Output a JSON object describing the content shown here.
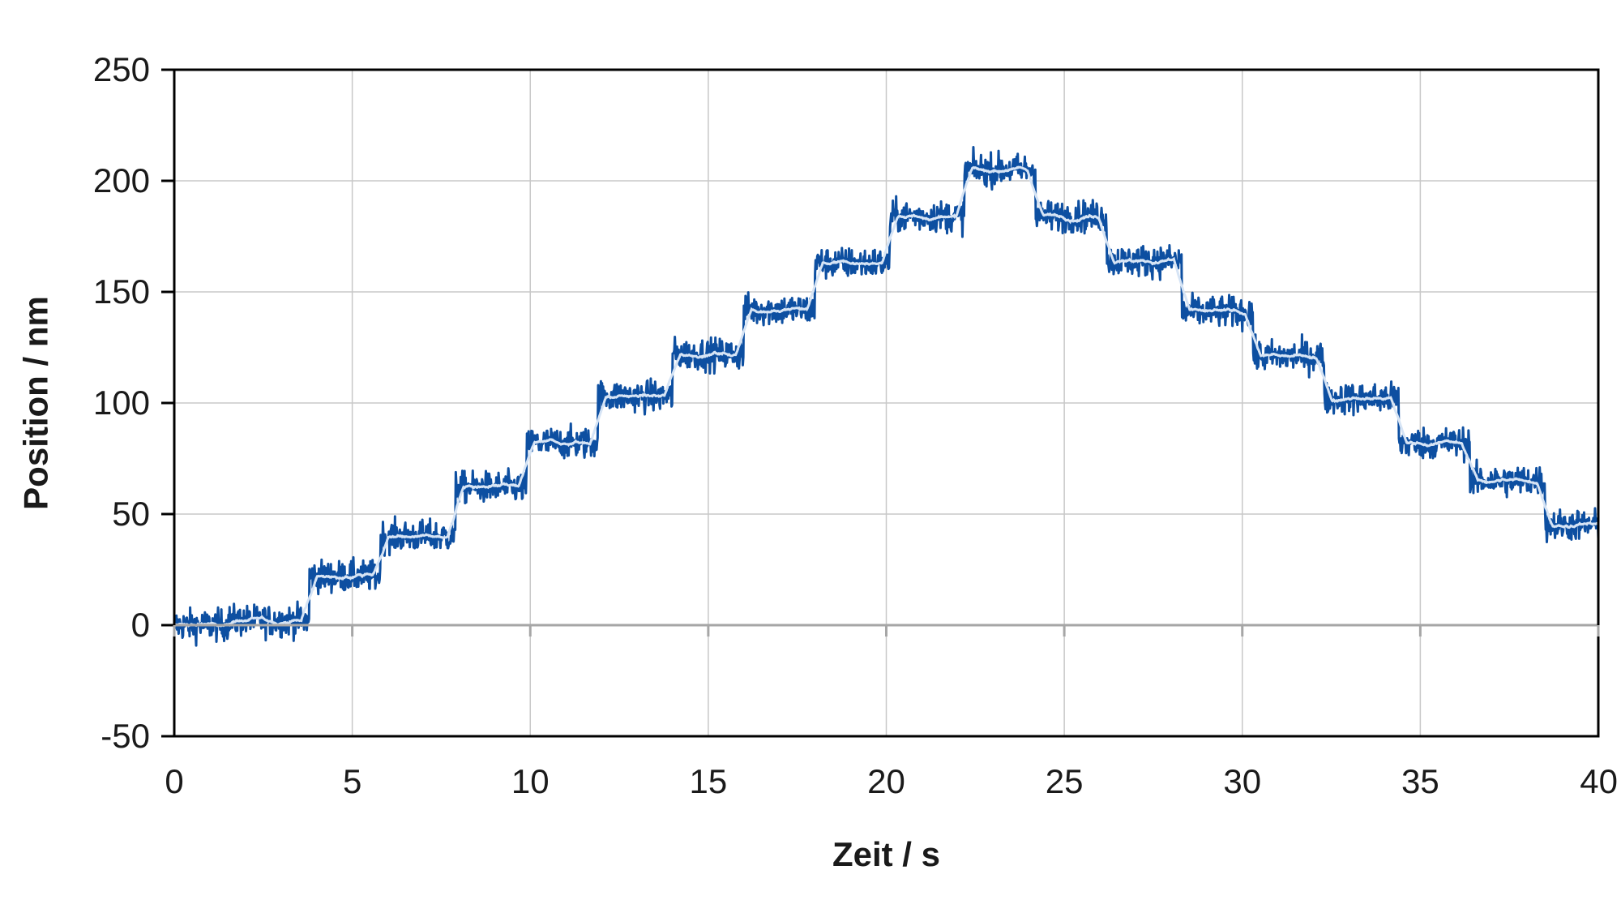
{
  "chart_data": {
    "type": "line",
    "title": "",
    "xlabel": "Zeit / s",
    "ylabel": "Position / nm",
    "xlim": [
      0,
      40
    ],
    "ylim": [
      -50,
      250
    ],
    "xticks": [
      0,
      5,
      10,
      15,
      20,
      25,
      30,
      35,
      40
    ],
    "yticks": [
      -50,
      0,
      50,
      100,
      150,
      200,
      250
    ],
    "grid": true,
    "legend": "none",
    "colors": {
      "raw": "#0d4fa1",
      "smoothed": "#d6e4f5",
      "grid": "#c8c8c8",
      "frame": "#000000",
      "zero_line": "#a6a6a6"
    },
    "series": [
      {
        "kind": "raw-noisy",
        "noise_amplitude_nm": 5,
        "steps": [
          {
            "t_start": 0,
            "t_end": 1.5,
            "position": 0
          },
          {
            "t_start": 1.5,
            "t_end": 3.8,
            "position": 2
          },
          {
            "t_start": 3.8,
            "t_end": 5.8,
            "position": 22
          },
          {
            "t_start": 5.8,
            "t_end": 7.9,
            "position": 40
          },
          {
            "t_start": 7.9,
            "t_end": 9.9,
            "position": 62
          },
          {
            "t_start": 9.9,
            "t_end": 11.9,
            "position": 82
          },
          {
            "t_start": 11.9,
            "t_end": 14.0,
            "position": 103
          },
          {
            "t_start": 14.0,
            "t_end": 16.0,
            "position": 122
          },
          {
            "t_start": 16.0,
            "t_end": 18.0,
            "position": 142
          },
          {
            "t_start": 18.0,
            "t_end": 20.1,
            "position": 163
          },
          {
            "t_start": 20.1,
            "t_end": 22.2,
            "position": 184
          },
          {
            "t_start": 22.2,
            "t_end": 24.2,
            "position": 205
          },
          {
            "t_start": 24.2,
            "t_end": 26.2,
            "position": 184
          },
          {
            "t_start": 26.2,
            "t_end": 28.3,
            "position": 164
          },
          {
            "t_start": 28.3,
            "t_end": 30.3,
            "position": 141
          },
          {
            "t_start": 30.3,
            "t_end": 32.3,
            "position": 121
          },
          {
            "t_start": 32.3,
            "t_end": 34.4,
            "position": 102
          },
          {
            "t_start": 34.4,
            "t_end": 36.4,
            "position": 82
          },
          {
            "t_start": 36.4,
            "t_end": 38.5,
            "position": 65
          },
          {
            "t_start": 38.5,
            "t_end": 40,
            "position": 45
          }
        ]
      },
      {
        "kind": "smoothed",
        "follows": "raw-noisy"
      }
    ]
  }
}
